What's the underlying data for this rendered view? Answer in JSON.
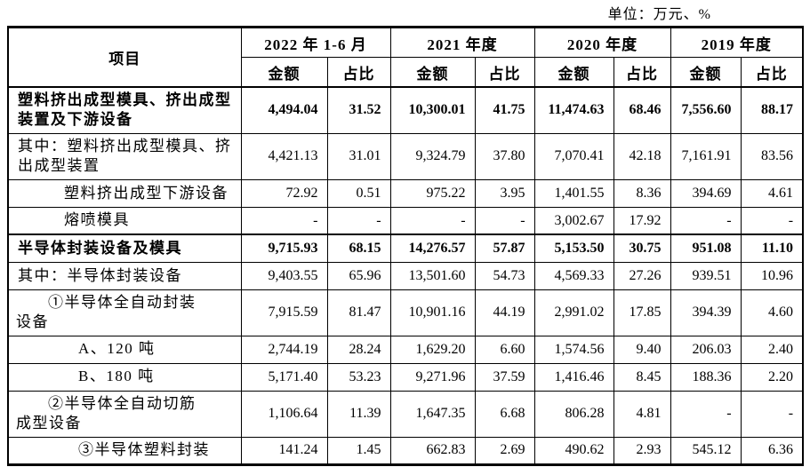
{
  "unit_label": "单位：万元、%",
  "table": {
    "item_header": "项目",
    "amount_label": "金额",
    "ratio_label": "占比",
    "periods": [
      "2022 年 1-6 月",
      "2021 年度",
      "2020 年度",
      "2019 年度"
    ],
    "rows": [
      {
        "label": "塑料挤出成型模具、挤出成型\n装置及下游设备",
        "bold": true,
        "indent": "none",
        "values": [
          "4,494.04",
          "31.52",
          "10,300.01",
          "41.75",
          "11,474.63",
          "68.46",
          "7,556.60",
          "88.17"
        ]
      },
      {
        "label": "其中：塑料挤出成型模具、挤\n出成型装置",
        "bold": false,
        "indent": "none",
        "values": [
          "4,421.13",
          "31.01",
          "9,324.79",
          "37.80",
          "7,070.41",
          "42.18",
          "7,161.91",
          "83.56"
        ]
      },
      {
        "label": "塑料挤出成型下游设备",
        "bold": false,
        "indent": "mid",
        "values": [
          "72.92",
          "0.51",
          "975.22",
          "3.95",
          "1,401.55",
          "8.36",
          "394.69",
          "4.61"
        ]
      },
      {
        "label": "熔喷模具",
        "bold": false,
        "indent": "mid",
        "values": [
          "-",
          "-",
          "-",
          "-",
          "3,002.67",
          "17.92",
          "-",
          "-"
        ]
      },
      {
        "label": "半导体封装设备及模具",
        "bold": true,
        "indent": "none",
        "values": [
          "9,715.93",
          "68.15",
          "14,276.57",
          "57.87",
          "5,153.50",
          "30.75",
          "951.08",
          "11.10"
        ]
      },
      {
        "label": "其中：半导体封装设备",
        "bold": false,
        "indent": "none",
        "values": [
          "9,403.55",
          "65.96",
          "13,501.60",
          "54.73",
          "4,569.33",
          "27.26",
          "939.51",
          "10.96"
        ]
      },
      {
        "label": "①半导体全自动封装\n设备",
        "bold": false,
        "indent": "hang",
        "values": [
          "7,915.59",
          "81.47",
          "10,901.16",
          "44.19",
          "2,991.02",
          "17.85",
          "394.39",
          "4.60"
        ]
      },
      {
        "label": "A、120 吨",
        "bold": false,
        "indent": "deep",
        "values": [
          "2,744.19",
          "28.24",
          "1,629.20",
          "6.60",
          "1,574.56",
          "9.40",
          "206.03",
          "2.40"
        ]
      },
      {
        "label": "B、180 吨",
        "bold": false,
        "indent": "deep",
        "values": [
          "5,171.40",
          "53.23",
          "9,271.96",
          "37.59",
          "1,416.46",
          "8.45",
          "188.36",
          "2.20"
        ]
      },
      {
        "label": "②半导体全自动切筋\n成型设备",
        "bold": false,
        "indent": "hang",
        "values": [
          "1,106.64",
          "11.39",
          "1,647.35",
          "6.68",
          "806.28",
          "4.81",
          "-",
          "-"
        ]
      },
      {
        "label": "③半导体塑料封装",
        "bold": false,
        "indent": "deep",
        "values": [
          "141.24",
          "1.45",
          "662.83",
          "2.69",
          "490.62",
          "2.93",
          "545.12",
          "6.36"
        ]
      }
    ]
  }
}
